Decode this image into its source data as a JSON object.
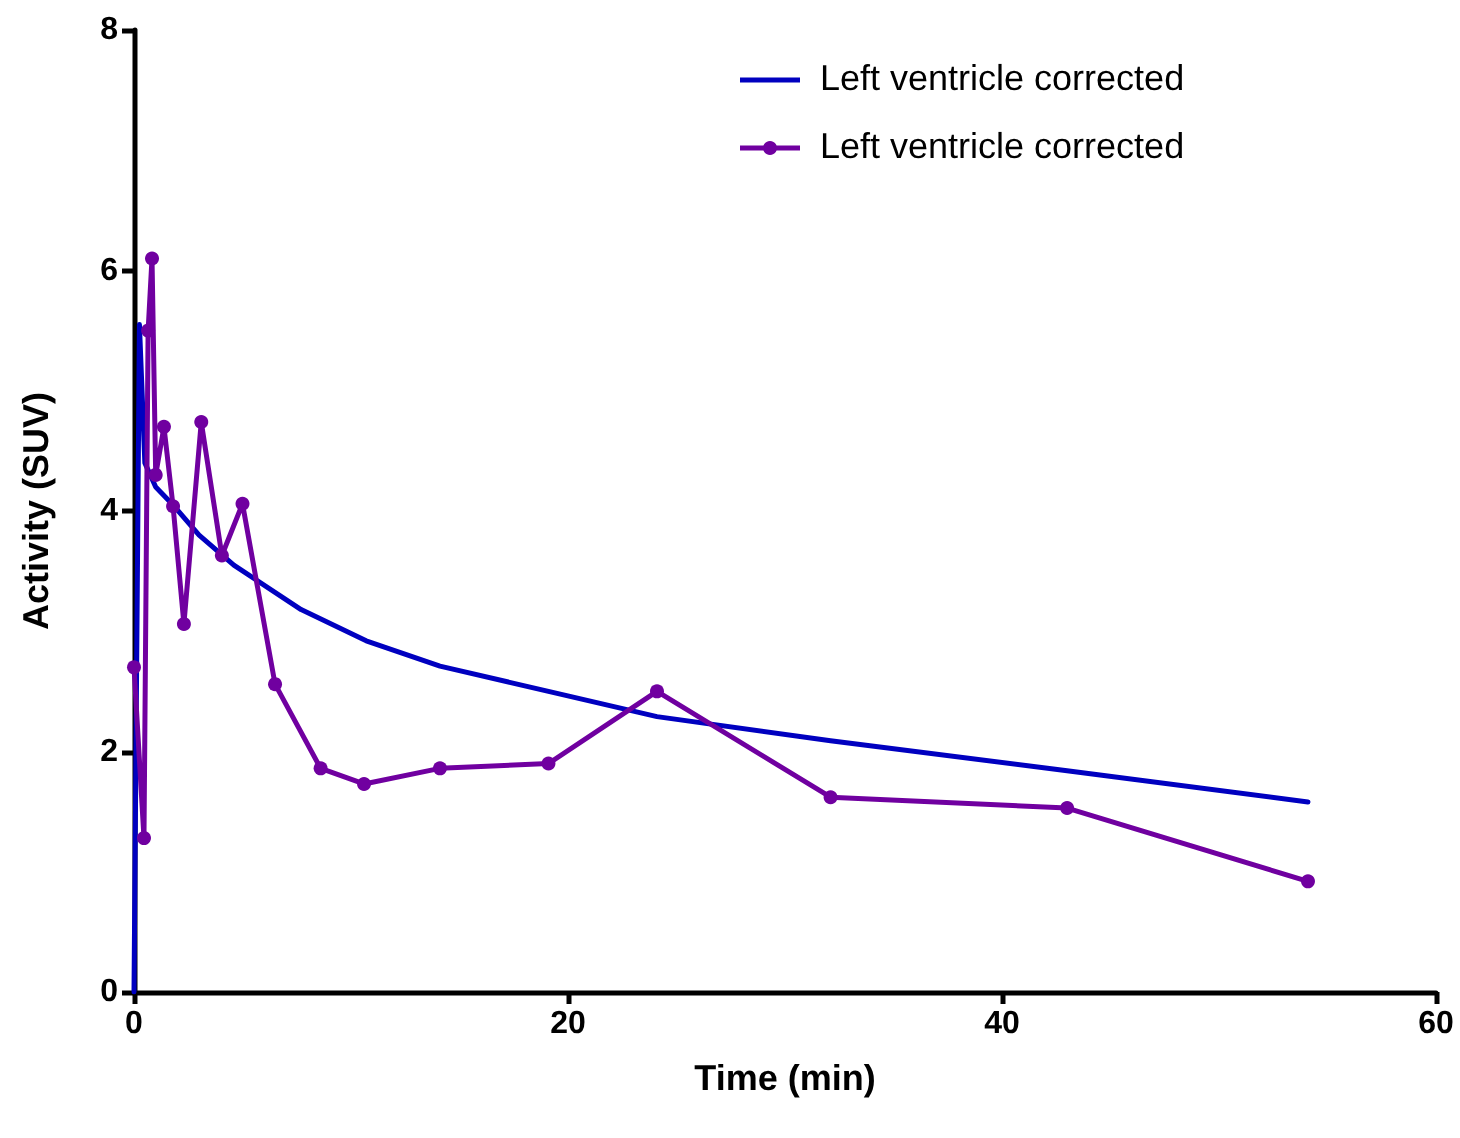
{
  "chart_data": {
    "type": "line",
    "xlabel": "Time (min)",
    "ylabel": "Activity (SUV)",
    "xlim": [
      0,
      60
    ],
    "xticks": [
      0,
      20,
      40,
      60
    ],
    "ylim": [
      0,
      8
    ],
    "yticks": [
      0,
      2,
      4,
      6,
      8
    ],
    "grid": false,
    "legend": "top right",
    "line_style": "solid",
    "series": [
      {
        "name": "Left ventricle corrected",
        "color": "#0000c0",
        "marker": "none",
        "x": [
          0,
          0.25,
          0.5,
          1,
          1.8,
          3,
          4.6,
          7.7,
          10.7,
          14.1,
          19.1,
          24.1,
          32.1,
          43,
          54.1
        ],
        "values": [
          0,
          5.55,
          4.4,
          4.2,
          4.05,
          3.8,
          3.55,
          3.18,
          2.92,
          2.71,
          2.5,
          2.29,
          2.09,
          1.84,
          1.58
        ]
      },
      {
        "name": "Left ventricle corrected",
        "color": "#7000a0",
        "marker": "circle",
        "x": [
          0,
          0.46,
          0.65,
          0.83,
          1.0,
          1.38,
          1.8,
          2.3,
          3.1,
          4.05,
          5.0,
          6.5,
          8.6,
          10.6,
          14.1,
          19.1,
          24.1,
          32.1,
          43.0,
          54.1
        ],
        "values": [
          2.7,
          1.28,
          5.5,
          6.1,
          4.3,
          4.7,
          4.04,
          3.06,
          4.74,
          3.63,
          4.06,
          2.56,
          1.86,
          1.73,
          1.86,
          1.9,
          2.5,
          1.62,
          1.53,
          0.92
        ]
      }
    ]
  }
}
